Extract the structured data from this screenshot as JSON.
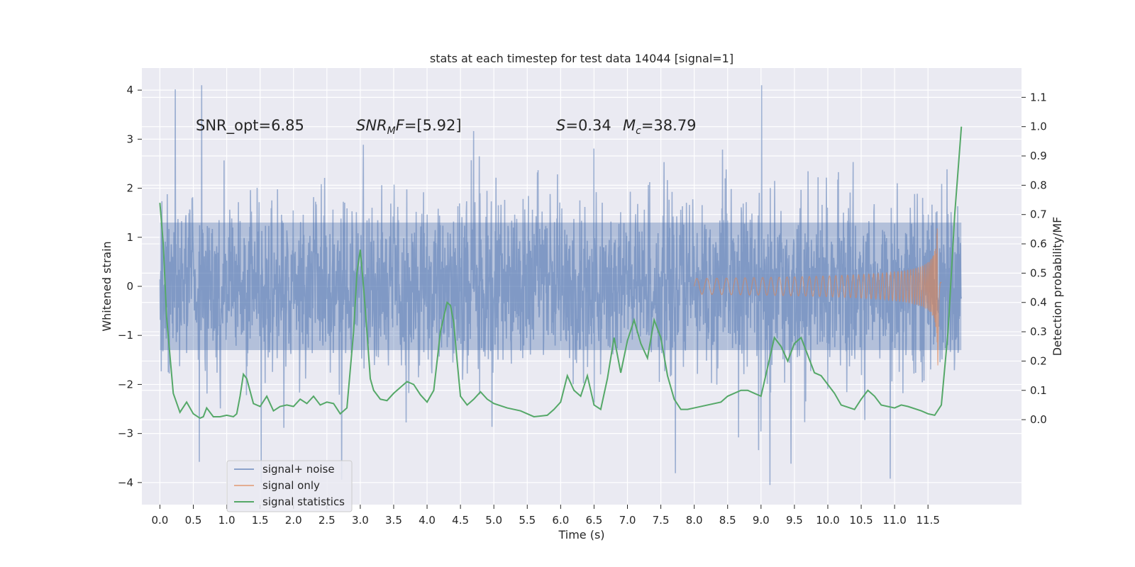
{
  "chart_data": {
    "type": "line",
    "title": "stats at each timestep for test data 14044 [signal=1]",
    "xlabel": "Time (s)",
    "ylabel": "Whitened strain",
    "y2label": "Detection probability/MF",
    "xlim": [
      -0.27,
      12.9
    ],
    "ylim": [
      -4.45,
      4.45
    ],
    "y2lim": [
      -0.29,
      1.2
    ],
    "x_ticks": [
      0.0,
      0.5,
      1.0,
      1.5,
      2.0,
      2.5,
      3.0,
      3.5,
      4.0,
      4.5,
      5.0,
      5.5,
      6.0,
      6.5,
      7.0,
      7.5,
      8.0,
      8.5,
      9.0,
      9.5,
      10.0,
      10.5,
      11.0,
      11.5
    ],
    "x_tick_labels": [
      "0.0",
      "0.5",
      "1.0",
      "1.5",
      "2.0",
      "2.5",
      "3.0",
      "3.5",
      "4.0",
      "4.5",
      "5.0",
      "5.5",
      "6.0",
      "6.5",
      "7.0",
      "7.5",
      "8.0",
      "8.5",
      "9.0",
      "9.5",
      "10.0",
      "10.5",
      "11.0",
      "11.5"
    ],
    "y_ticks": [
      -4,
      -3,
      -2,
      -1,
      0,
      1,
      2,
      3,
      4
    ],
    "y_tick_labels": [
      "−4",
      "−3",
      "−2",
      "−1",
      "0",
      "1",
      "2",
      "3",
      "4"
    ],
    "y2_ticks": [
      0.0,
      0.1,
      0.2,
      0.3,
      0.4,
      0.5,
      0.6,
      0.7,
      0.8,
      0.9,
      1.0,
      1.1
    ],
    "y2_tick_labels": [
      "0.0",
      "0.1",
      "0.2",
      "0.3",
      "0.4",
      "0.5",
      "0.6",
      "0.7",
      "0.8",
      "0.9",
      "1.0",
      "1.1"
    ],
    "grid": true,
    "legend_position": "lower-left",
    "annotations": [
      {
        "label": "SNR_opt=6.85"
      },
      {
        "label": "SNR_MF=[5.92]"
      },
      {
        "label": "S=0.34"
      },
      {
        "label": "M_c=38.79"
      }
    ],
    "series": [
      {
        "name": "signal+ noise",
        "color": "#4c72b0",
        "axis": "left",
        "kind": "noise",
        "x_range": [
          0.0,
          12.0
        ],
        "envelope": {
          "typical_peak": 2.3,
          "max": 4.1,
          "min": -4.05,
          "dense_band": [
            -1.3,
            1.3
          ]
        }
      },
      {
        "name": "signal only",
        "color": "#dd8452",
        "axis": "left",
        "kind": "chirp",
        "x_range": [
          8.0,
          11.7
        ],
        "envelope": {
          "peak_time": 11.65,
          "peak_amplitude": 1.75
        }
      },
      {
        "name": "signal statistics",
        "color": "#55a868",
        "axis": "right",
        "kind": "line",
        "x": [
          0.0,
          0.05,
          0.1,
          0.15,
          0.2,
          0.3,
          0.4,
          0.5,
          0.6,
          0.65,
          0.7,
          0.8,
          0.9,
          1.0,
          1.1,
          1.15,
          1.2,
          1.25,
          1.3,
          1.4,
          1.5,
          1.6,
          1.7,
          1.8,
          1.9,
          2.0,
          2.1,
          2.2,
          2.3,
          2.4,
          2.5,
          2.6,
          2.7,
          2.8,
          2.9,
          2.95,
          3.0,
          3.05,
          3.1,
          3.15,
          3.2,
          3.3,
          3.4,
          3.5,
          3.6,
          3.7,
          3.8,
          3.9,
          4.0,
          4.1,
          4.2,
          4.3,
          4.35,
          4.4,
          4.45,
          4.5,
          4.6,
          4.7,
          4.8,
          4.9,
          5.0,
          5.2,
          5.4,
          5.6,
          5.8,
          5.9,
          6.0,
          6.1,
          6.2,
          6.3,
          6.4,
          6.5,
          6.6,
          6.7,
          6.8,
          6.9,
          7.0,
          7.1,
          7.2,
          7.3,
          7.4,
          7.5,
          7.6,
          7.7,
          7.8,
          7.9,
          8.0,
          8.2,
          8.4,
          8.5,
          8.7,
          8.8,
          8.9,
          9.0,
          9.1,
          9.2,
          9.3,
          9.4,
          9.5,
          9.6,
          9.7,
          9.8,
          9.9,
          10.0,
          10.1,
          10.2,
          10.4,
          10.5,
          10.6,
          10.7,
          10.8,
          11.0,
          11.1,
          11.2,
          11.4,
          11.5,
          11.6,
          11.7,
          11.8,
          11.9,
          12.0
        ],
        "values": [
          0.74,
          0.6,
          0.35,
          0.22,
          0.09,
          0.025,
          0.06,
          0.02,
          0.005,
          0.01,
          0.04,
          0.01,
          0.01,
          0.015,
          0.01,
          0.02,
          0.08,
          0.155,
          0.14,
          0.055,
          0.045,
          0.08,
          0.03,
          0.045,
          0.05,
          0.045,
          0.07,
          0.055,
          0.08,
          0.05,
          0.06,
          0.055,
          0.02,
          0.04,
          0.3,
          0.5,
          0.58,
          0.45,
          0.3,
          0.14,
          0.1,
          0.07,
          0.065,
          0.09,
          0.11,
          0.13,
          0.12,
          0.085,
          0.06,
          0.1,
          0.3,
          0.4,
          0.39,
          0.33,
          0.2,
          0.08,
          0.05,
          0.07,
          0.095,
          0.07,
          0.055,
          0.04,
          0.03,
          0.01,
          0.015,
          0.035,
          0.06,
          0.15,
          0.1,
          0.08,
          0.15,
          0.05,
          0.035,
          0.14,
          0.28,
          0.16,
          0.27,
          0.34,
          0.26,
          0.21,
          0.34,
          0.28,
          0.15,
          0.07,
          0.035,
          0.035,
          0.04,
          0.05,
          0.06,
          0.08,
          0.1,
          0.1,
          0.09,
          0.08,
          0.18,
          0.28,
          0.25,
          0.2,
          0.26,
          0.28,
          0.22,
          0.16,
          0.15,
          0.12,
          0.09,
          0.05,
          0.035,
          0.07,
          0.1,
          0.08,
          0.05,
          0.04,
          0.05,
          0.045,
          0.03,
          0.02,
          0.015,
          0.05,
          0.3,
          0.7,
          1.0
        ]
      }
    ]
  }
}
